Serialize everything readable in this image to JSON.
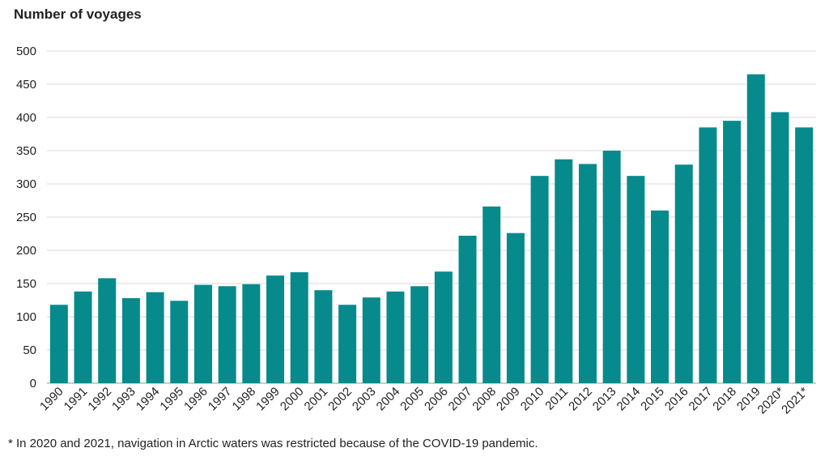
{
  "chart_data": {
    "type": "bar",
    "title": "Number of voyages",
    "xlabel": "",
    "ylabel": "",
    "ylim": [
      0,
      500
    ],
    "yticks": [
      0,
      50,
      100,
      150,
      200,
      250,
      300,
      350,
      400,
      450,
      500
    ],
    "grid": true,
    "bar_color": "#078a8c",
    "categories": [
      "1990",
      "1991",
      "1992",
      "1993",
      "1994",
      "1995",
      "1996",
      "1997",
      "1998",
      "1999",
      "2000",
      "2001",
      "2002",
      "2003",
      "2004",
      "2005",
      "2006",
      "2007",
      "2008",
      "2009",
      "2010",
      "2011",
      "2012",
      "2013",
      "2014",
      "2015",
      "2016",
      "2017",
      "2018",
      "2019",
      "2020*",
      "2021*"
    ],
    "values": [
      118,
      138,
      158,
      128,
      137,
      124,
      148,
      146,
      149,
      162,
      167,
      140,
      118,
      129,
      138,
      146,
      168,
      222,
      266,
      226,
      312,
      337,
      330,
      350,
      312,
      260,
      329,
      385,
      395,
      465,
      408,
      385
    ],
    "footnote": "* In 2020 and 2021, navigation in Arctic waters was restricted because of the COVID-19 pandemic."
  }
}
